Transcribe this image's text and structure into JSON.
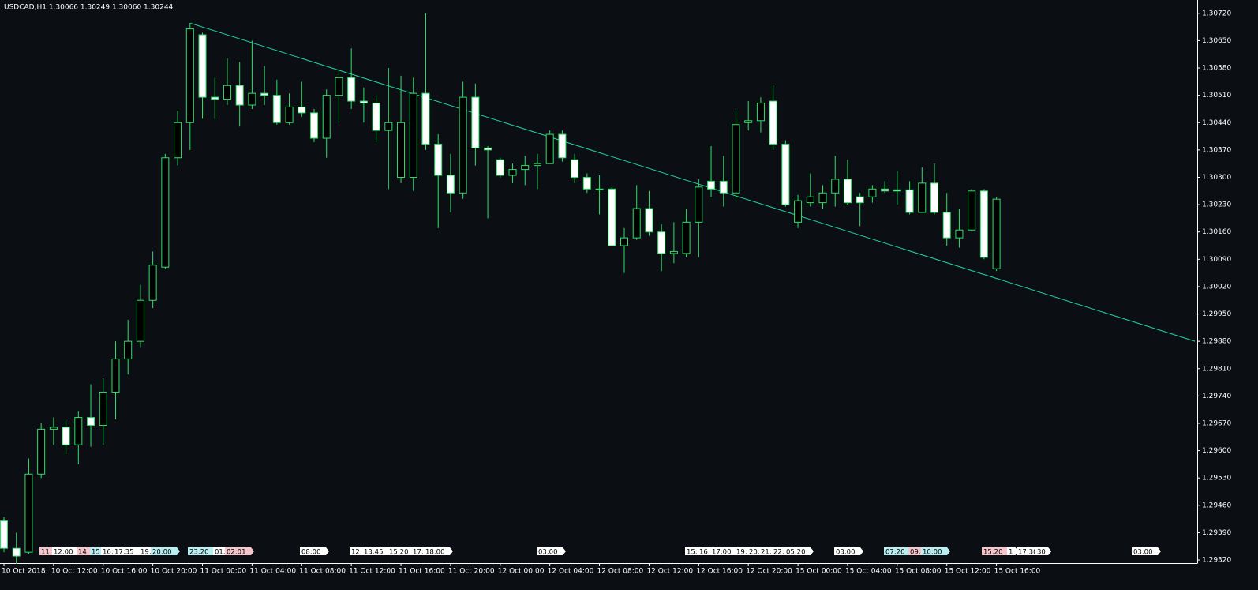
{
  "chart_data": {
    "type": "candlestick",
    "title": "USDCAD,H1  1.30066 1.30249 1.30060 1.30244",
    "categories": [
      "10 Oct 2018",
      null,
      null,
      null,
      "10 Oct 12:00",
      null,
      null,
      null,
      "10 Oct 16:00",
      null,
      null,
      null,
      "10 Oct 20:00",
      null,
      null,
      null,
      "11 Oct 00:00",
      null,
      null,
      null,
      "11 Oct 04:00",
      null,
      null,
      null,
      "11 Oct 08:00",
      null,
      null,
      null,
      "11 Oct 12:00",
      null,
      null,
      null,
      "11 Oct 16:00",
      null,
      null,
      null,
      "11 Oct 20:00",
      null,
      null,
      null,
      "12 Oct 00:00",
      null,
      null,
      null,
      "12 Oct 04:00",
      null,
      null,
      null,
      "12 Oct 08:00",
      null,
      null,
      null,
      "12 Oct 12:00",
      null,
      null,
      null,
      "12 Oct 16:00",
      null,
      null,
      null,
      "12 Oct 20:00",
      null,
      null,
      null,
      "15 Oct 00:00",
      null,
      null,
      null,
      "15 Oct 04:00",
      null,
      null,
      null,
      "15 Oct 08:00",
      null,
      null,
      null,
      "15 Oct 12:00",
      null,
      null,
      null,
      "15 Oct 16:00"
    ],
    "open": [
      1.2942,
      1.2935,
      1.2934,
      1.2954,
      1.29655,
      1.2966,
      1.29615,
      1.29685,
      1.29665,
      1.2975,
      1.29835,
      1.2988,
      1.29985,
      1.3007,
      1.3035,
      1.3044,
      1.30665,
      1.30505,
      1.305,
      1.30535,
      1.30485,
      1.30515,
      1.3051,
      1.3044,
      1.3048,
      1.30465,
      1.304,
      1.3051,
      1.30555,
      1.30495,
      1.3049,
      1.3042,
      1.303,
      1.303,
      1.30515,
      1.30385,
      1.30305,
      1.3026,
      1.30505,
      1.30375,
      1.30345,
      1.30305,
      1.3032,
      1.3033,
      1.30335,
      1.3041,
      1.30345,
      1.303,
      1.3027,
      1.3027,
      1.30125,
      1.30145,
      1.3022,
      1.3016,
      1.30105,
      1.30105,
      1.30185,
      1.3029,
      1.3029,
      1.3026,
      1.3044,
      1.30445,
      1.30495,
      1.30385,
      1.30185,
      1.30235,
      1.30235,
      1.3026,
      1.30295,
      1.3025,
      1.3025,
      1.3027,
      1.30268,
      1.30268,
      1.3021,
      1.30285,
      1.3021,
      1.30145,
      1.30165,
      1.30265,
      1.30066
    ],
    "high": [
      1.2943,
      1.2939,
      1.2958,
      1.2967,
      1.29685,
      1.2968,
      1.297,
      1.2977,
      1.29785,
      1.2988,
      1.29935,
      1.30025,
      1.3011,
      1.3036,
      1.3047,
      1.30695,
      1.3067,
      1.30555,
      1.30605,
      1.30595,
      1.3065,
      1.30585,
      1.3055,
      1.30515,
      1.30545,
      1.30475,
      1.30525,
      1.30575,
      1.3063,
      1.3053,
      1.3051,
      1.3058,
      1.3056,
      1.30555,
      1.3072,
      1.3041,
      1.3036,
      1.30545,
      1.3054,
      1.3038,
      1.3035,
      1.30335,
      1.30355,
      1.3036,
      1.3042,
      1.3042,
      1.3036,
      1.3031,
      1.30305,
      1.30275,
      1.3017,
      1.3028,
      1.30265,
      1.3018,
      1.30185,
      1.3022,
      1.30295,
      1.3038,
      1.30355,
      1.3047,
      1.30495,
      1.30505,
      1.30535,
      1.30395,
      1.30255,
      1.3031,
      1.3028,
      1.30355,
      1.30345,
      1.3026,
      1.3028,
      1.3029,
      1.30315,
      1.3029,
      1.30325,
      1.30335,
      1.3026,
      1.3022,
      1.3027,
      1.3027,
      1.30249
    ],
    "low": [
      1.2934,
      1.2931,
      1.29335,
      1.2953,
      1.29615,
      1.2959,
      1.29565,
      1.2961,
      1.29615,
      1.2968,
      1.29795,
      1.29865,
      1.29965,
      1.30065,
      1.3033,
      1.3037,
      1.3045,
      1.3045,
      1.30485,
      1.3043,
      1.30475,
      1.30485,
      1.30435,
      1.30435,
      1.30455,
      1.3039,
      1.3035,
      1.3044,
      1.30475,
      1.3044,
      1.3039,
      1.3027,
      1.30285,
      1.30265,
      1.3037,
      1.3017,
      1.3021,
      1.30245,
      1.3033,
      1.30195,
      1.303,
      1.30285,
      1.3028,
      1.3027,
      1.30335,
      1.3034,
      1.30285,
      1.3026,
      1.30205,
      1.30125,
      1.30055,
      1.3014,
      1.3015,
      1.3006,
      1.3008,
      1.30095,
      1.30095,
      1.3025,
      1.30225,
      1.3024,
      1.3042,
      1.30415,
      1.3037,
      1.30225,
      1.3017,
      1.30225,
      1.3022,
      1.30225,
      1.3023,
      1.30175,
      1.30235,
      1.3026,
      1.3023,
      1.30205,
      1.3021,
      1.30205,
      1.30125,
      1.3012,
      1.30163,
      1.3009,
      1.3006
    ],
    "close": [
      1.2935,
      1.2933,
      1.2954,
      1.29655,
      1.2966,
      1.29615,
      1.29685,
      1.29665,
      1.2975,
      1.29835,
      1.2988,
      1.29985,
      1.30075,
      1.3035,
      1.3044,
      1.3068,
      1.30505,
      1.305,
      1.30535,
      1.30485,
      1.30515,
      1.3051,
      1.3044,
      1.3048,
      1.30465,
      1.304,
      1.3051,
      1.30555,
      1.30495,
      1.3049,
      1.3042,
      1.3044,
      1.3044,
      1.30515,
      1.30385,
      1.30305,
      1.3026,
      1.30505,
      1.30375,
      1.3037,
      1.30305,
      1.3032,
      1.3033,
      1.30335,
      1.3041,
      1.3035,
      1.303,
      1.3027,
      1.30268,
      1.30125,
      1.30145,
      1.3022,
      1.3016,
      1.30105,
      1.3011,
      1.30185,
      1.30275,
      1.3027,
      1.3026,
      1.30435,
      1.30445,
      1.3049,
      1.30385,
      1.3023,
      1.3024,
      1.3025,
      1.3026,
      1.30295,
      1.30235,
      1.30235,
      1.3027,
      1.30265,
      1.30265,
      1.3021,
      1.30285,
      1.3021,
      1.30145,
      1.30165,
      1.30265,
      1.30095,
      1.30244
    ],
    "up_color": "#2ee06a",
    "down_color": "#ffffff",
    "ylim": [
      1.29312,
      1.30754
    ],
    "yticks": [
      {
        "value": 1.3072,
        "label": "1.30720"
      },
      {
        "value": 1.3065,
        "label": "1.30650"
      },
      {
        "value": 1.3058,
        "label": "1.30580"
      },
      {
        "value": 1.3051,
        "label": "1.30510"
      },
      {
        "value": 1.3044,
        "label": "1.30440"
      },
      {
        "value": 1.3037,
        "label": "1.30370"
      },
      {
        "value": 1.303,
        "label": "1.30300"
      },
      {
        "value": 1.3023,
        "label": "1.30230"
      },
      {
        "value": 1.3016,
        "label": "1.30160"
      },
      {
        "value": 1.3009,
        "label": "1.30090"
      },
      {
        "value": 1.3002,
        "label": "1.30020"
      },
      {
        "value": 1.2995,
        "label": "1.29950"
      },
      {
        "value": 1.2988,
        "label": "1.29880"
      },
      {
        "value": 1.2981,
        "label": "1.29810"
      },
      {
        "value": 1.2974,
        "label": "1.29740"
      },
      {
        "value": 1.2967,
        "label": "1.29670"
      },
      {
        "value": 1.296,
        "label": "1.29600"
      },
      {
        "value": 1.2953,
        "label": "1.29530"
      },
      {
        "value": 1.2946,
        "label": "1.29460"
      },
      {
        "value": 1.2939,
        "label": "1.29390"
      },
      {
        "value": 1.2932,
        "label": "1.29320"
      }
    ],
    "grid": false,
    "trendline": {
      "x": [
        15,
        96
      ],
      "y": [
        1.30695,
        1.2988
      ],
      "color": "#1fd1a0"
    },
    "time_markers": [
      {
        "label": "11:",
        "color": "#f6c6cc"
      },
      {
        "label": "12:00",
        "color": "#ffffff"
      },
      {
        "label": "14:",
        "color": "#f6c6cc"
      },
      {
        "label": "15:",
        "color": "#b9eef2"
      },
      {
        "label": "16:",
        "color": "#ffffff"
      },
      {
        "label": "17:35",
        "color": "#ffffff"
      },
      {
        "label": "19:",
        "color": "#ffffff"
      },
      {
        "label": "20:00",
        "color": "#b9eef2"
      },
      {
        "label": "23:20",
        "color": "#b9eef2"
      },
      {
        "label": "01:",
        "color": "#ffffff"
      },
      {
        "label": "02:01",
        "color": "#f6c6cc"
      },
      {
        "label": "08:00",
        "color": "#ffffff"
      },
      {
        "label": "12:",
        "color": "#ffffff"
      },
      {
        "label": "13:45",
        "color": "#ffffff"
      },
      {
        "label": "15:20",
        "color": "#ffffff"
      },
      {
        "label": "17:",
        "color": "#ffffff"
      },
      {
        "label": "18:00",
        "color": "#ffffff"
      },
      {
        "label": "03:00",
        "color": "#ffffff"
      },
      {
        "label": "15:",
        "color": "#ffffff"
      },
      {
        "label": "16:",
        "color": "#ffffff"
      },
      {
        "label": "17:00",
        "color": "#ffffff"
      },
      {
        "label": "19:",
        "color": "#ffffff"
      },
      {
        "label": "20:",
        "color": "#ffffff"
      },
      {
        "label": "21:",
        "color": "#ffffff"
      },
      {
        "label": "22:",
        "color": "#ffffff"
      },
      {
        "label": "05:20",
        "color": "#ffffff"
      },
      {
        "label": "03:00",
        "color": "#ffffff"
      },
      {
        "label": "07:20",
        "color": "#b9eef2"
      },
      {
        "label": "09:",
        "color": "#f6c6cc"
      },
      {
        "label": "10:00",
        "color": "#b9eef2"
      },
      {
        "label": "15:20",
        "color": "#f6c6cc"
      },
      {
        "label": "1",
        "color": "#ffffff"
      },
      {
        "label": "17:30",
        "color": "#ffffff"
      },
      {
        "label": "30",
        "color": "#ffffff"
      },
      {
        "label": "03:00",
        "color": "#ffffff"
      }
    ]
  }
}
